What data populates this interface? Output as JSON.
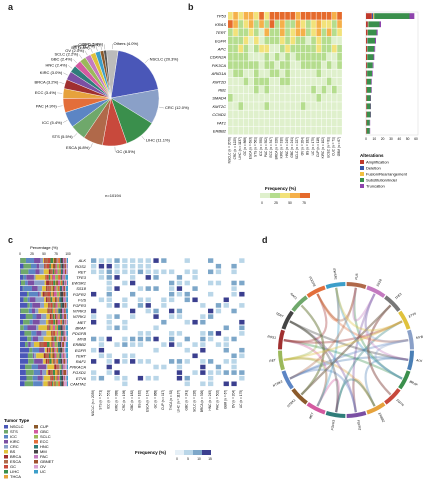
{
  "panels": {
    "a": "a",
    "b": "b",
    "c": "c",
    "d": "d"
  },
  "panel_a": {
    "n_label": "n=10194",
    "slices": [
      {
        "name": "NSCLC (20.3%)",
        "value": 20.3,
        "color": "#4a57b8"
      },
      {
        "name": "CRC (12.0%)",
        "value": 12.0,
        "color": "#8aa0c8"
      },
      {
        "name": "LIHC (11.1%)",
        "value": 11.1,
        "color": "#3a8f4c"
      },
      {
        "name": "GC (8.5%)",
        "value": 8.5,
        "color": "#c8493c"
      },
      {
        "name": "ESCA (6.8%)",
        "value": 6.8,
        "color": "#b0694a"
      },
      {
        "name": "STS (5.5%)",
        "value": 5.5,
        "color": "#6fa86b"
      },
      {
        "name": "ICC (5.4%)",
        "value": 5.4,
        "color": "#5c85c4"
      },
      {
        "name": "PAC (4.9%)",
        "value": 4.9,
        "color": "#e36e3a"
      },
      {
        "name": "ECC (3.4%)",
        "value": 3.4,
        "color": "#e6a23c"
      },
      {
        "name": "BRCA (3.2%)",
        "value": 3.2,
        "color": "#a02f2f"
      },
      {
        "name": "KIRC (3.0%)",
        "value": 3.0,
        "color": "#7b4fa3"
      },
      {
        "name": "HNC (2.4%)",
        "value": 2.4,
        "color": "#2f7d7a"
      },
      {
        "name": "GBC (2.4%)",
        "value": 2.4,
        "color": "#d35aa0"
      },
      {
        "name": "SCLC (2.2%)",
        "value": 2.2,
        "color": "#9bb85a"
      },
      {
        "name": "OV (2.0%)",
        "value": 2.0,
        "color": "#c47ac0"
      },
      {
        "name": "BS (1.8%)",
        "value": 1.8,
        "color": "#e0c23c"
      },
      {
        "name": "HNC (1.7%)",
        "value": 1.7,
        "color": "#3c9ec9"
      },
      {
        "name": "CUP (1.2%)",
        "value": 1.2,
        "color": "#8b5a2b"
      },
      {
        "name": "CUC (1.0%)",
        "value": 1.0,
        "color": "#555555"
      },
      {
        "name": "Others (4.0%)",
        "value": 4.0,
        "color": "#bbbbbb"
      }
    ]
  },
  "panel_b": {
    "genes": [
      "TP53",
      "KRAS",
      "TERT",
      "EGFR",
      "APC",
      "CDKN2A",
      "PIK3CA",
      "ARID1A",
      "KMT2D",
      "RB1",
      "SMAD4",
      "KMT2C",
      "CCND1",
      "FAT1",
      "ERBB2"
    ],
    "cohorts": [
      "NSCLC (n = 2070)",
      "CRC (n = 1225)",
      "LIHC (n = 1137)",
      "GC (n = 868)",
      "ESCA (n = 693)",
      "STS (n = 561)",
      "ICC (n = 550)",
      "PAC (n = 502)",
      "ECC (n = 347)",
      "BRCA (n = 326)",
      "KIRC (n = 310)",
      "HNC (n = 245)",
      "GBC (n = 241)",
      "SCLC (n = 227)",
      "OV (n = 204)",
      "BS (n = 182)",
      "UC (n = 175)",
      "CUP (n = 118)",
      "KIRC (n = 102)",
      "UCEC (n = 81)",
      "CUC (n = 71)",
      "GBM (n = 67)"
    ],
    "frequency_label": "Frequency (%)",
    "frequency_ticks": [
      "0",
      "25",
      "50",
      "75"
    ],
    "bar_axis_ticks": [
      "0",
      "10",
      "20",
      "30",
      "40",
      "50",
      "60"
    ],
    "bar_values": [
      {
        "gene": "TP53",
        "percent": 58
      },
      {
        "gene": "KRAS",
        "percent": 18
      },
      {
        "gene": "TERT",
        "percent": 14
      },
      {
        "gene": "EGFR",
        "percent": 12
      },
      {
        "gene": "APC",
        "percent": 11
      },
      {
        "gene": "CDKN2A",
        "percent": 10
      },
      {
        "gene": "PIK3CA",
        "percent": 9
      },
      {
        "gene": "ARID1A",
        "percent": 8
      },
      {
        "gene": "KMT2D",
        "percent": 7
      },
      {
        "gene": "RB1",
        "percent": 7
      },
      {
        "gene": "SMAD4",
        "percent": 6
      },
      {
        "gene": "KMT2C",
        "percent": 6
      },
      {
        "gene": "CCND1",
        "percent": 6
      },
      {
        "gene": "FAT1",
        "percent": 5
      },
      {
        "gene": "ERBB2",
        "percent": 5
      }
    ],
    "alterations_title": "Alterations",
    "alterations": [
      {
        "name": "Amplification",
        "color": "#c0392b"
      },
      {
        "name": "Deletion",
        "color": "#3a57a8"
      },
      {
        "name": "Fusion/Rearrangement",
        "color": "#f0c040"
      },
      {
        "name": "Substitution/Indel",
        "color": "#3a8f4c"
      },
      {
        "name": "Truncation",
        "color": "#8e44ad"
      }
    ]
  },
  "panel_c": {
    "percentage_label": "Percentage (%)",
    "percentage_ticks": [
      "0",
      "25",
      "50",
      "75",
      "100"
    ],
    "genes": [
      "ALK",
      "ROS1",
      "RET",
      "TFE3",
      "EWSR1",
      "SS18",
      "FGFR2",
      "FUS",
      "FGFR3",
      "NTRK3",
      "NTRK1",
      "MET",
      "BRAF",
      "PDGFB",
      "MYB",
      "ERBB2",
      "EGFR",
      "TERT",
      "RAF1",
      "PRKACA",
      "FGXD1",
      "ETV6",
      "CAMTA1"
    ],
    "cohorts": [
      "NSCLC (n = 2039)",
      "STS (n = 571)",
      "ICC (n = 551)",
      "KIRC (n = 388)",
      "CRC (n = 198)",
      "GBC (n = 182)",
      "BS (n = 182)",
      "ESCA (n = 174)",
      "GC (n = 868)",
      "CUP (n = 117)",
      "THCA (n = 32)",
      "LIHC (n = 1137)",
      "GBC (n = 241)",
      "SCLC (n = 226)",
      "BRCA (n = 326)",
      "HNC (n = 245)",
      "PAC (n = 502)",
      "GBM (n = 67)",
      "OV (n = 204)",
      "UC (n = 175)"
    ],
    "frequency_label": "Frequency (%)",
    "frequency_ticks": [
      "0",
      "5",
      "10",
      "15"
    ],
    "tumor_type_title": "Tumor Type",
    "tumor_types": [
      {
        "name": "NSCLC",
        "color": "#4a57b8"
      },
      {
        "name": "STS",
        "color": "#6fa86b"
      },
      {
        "name": "ICC",
        "color": "#5c85c4"
      },
      {
        "name": "KIRC",
        "color": "#7b4fa3"
      },
      {
        "name": "CRC",
        "color": "#8aa0c8"
      },
      {
        "name": "BS",
        "color": "#e0c23c"
      },
      {
        "name": "BRCA",
        "color": "#a02f2f"
      },
      {
        "name": "ESCA",
        "color": "#b0694a"
      },
      {
        "name": "GC",
        "color": "#c8493c"
      },
      {
        "name": "LIHC",
        "color": "#3a8f4c"
      },
      {
        "name": "THCA",
        "color": "#e6a23c"
      },
      {
        "name": "CUP",
        "color": "#8b5a2b"
      },
      {
        "name": "GBC",
        "color": "#d35aa0"
      },
      {
        "name": "SCLC",
        "color": "#9bb85a"
      },
      {
        "name": "ECC",
        "color": "#e36e3a"
      },
      {
        "name": "HNC",
        "color": "#2f7d7a"
      },
      {
        "name": "MM",
        "color": "#444444"
      },
      {
        "name": "PAC",
        "color": "#c47ac0"
      },
      {
        "name": "GBNET",
        "color": "#a0522d"
      },
      {
        "name": "OV",
        "color": "#d9a0d0"
      },
      {
        "name": "UC",
        "color": "#3c9ec9"
      }
    ]
  },
  "panel_d": {
    "genes": [
      "ALK",
      "BRAF",
      "EGFR",
      "ERBB2",
      "FGFR2",
      "FGFR3",
      "MET",
      "NTRK1",
      "NTRK3",
      "RET",
      "ROS1",
      "TERT",
      "RAF1",
      "PDGFB",
      "EWSR1",
      "FUS",
      "SS18",
      "TFE3",
      "ETV6",
      "MYB"
    ]
  }
}
